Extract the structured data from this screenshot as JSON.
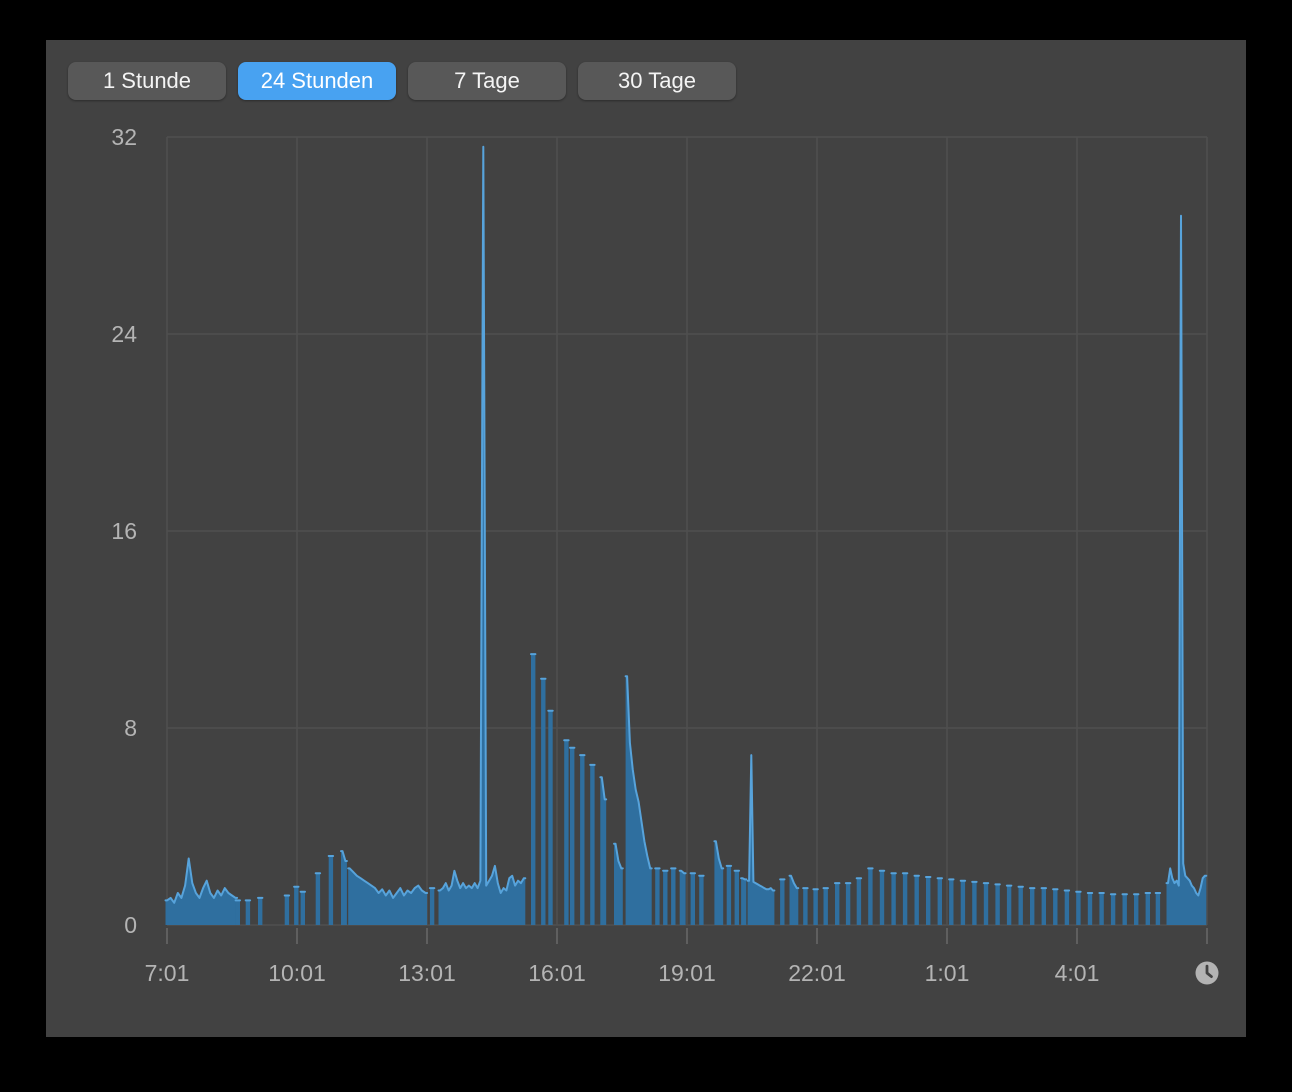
{
  "window": {
    "outer_background": "#000000",
    "panel_background": "#424242"
  },
  "toolbar": {
    "buttons": [
      {
        "label": "1 Stunde",
        "selected": false
      },
      {
        "label": "24 Stunden",
        "selected": true
      },
      {
        "label": "7 Tage",
        "selected": false
      },
      {
        "label": "30 Tage",
        "selected": false
      }
    ],
    "selected_color": "#48a2f1",
    "unselected_color": "#585858"
  },
  "chart_data": {
    "type": "area",
    "title": "",
    "xlabel": "",
    "ylabel": "",
    "ylim": [
      0,
      32
    ],
    "y_ticks": [
      0,
      8,
      16,
      24,
      32
    ],
    "x_ticks": [
      "7:01",
      "10:01",
      "13:01",
      "16:01",
      "19:01",
      "22:01",
      "1:01",
      "4:01"
    ],
    "x_tick_interval_minutes": 180,
    "x_range_minutes": 1440,
    "grid": true,
    "legend": "none",
    "clock_icon_at_axis_end": true,
    "colors": {
      "fill": "#2f6f9f",
      "line": "#57a3db",
      "grid": "#4f4f4f",
      "axis_label": "#b4b4b4",
      "tick": "#5f5f5f",
      "clock": "#b3b3b3"
    },
    "notable_points": [
      {
        "time": "14:18",
        "value": 31.6
      },
      {
        "time": "6:25",
        "value": 28.8
      }
    ],
    "segments": [
      {
        "start_min": 0,
        "step_min": 5,
        "values": [
          1.0,
          1.1,
          0.9,
          1.3,
          1.1,
          1.6,
          2.7,
          1.7,
          1.3,
          1.1,
          1.5,
          1.8,
          1.3,
          1.1,
          1.4,
          1.2,
          1.5,
          1.3,
          1.2,
          1.1
        ]
      },
      {
        "start_min": 98,
        "step_min": 5,
        "values": [
          1.0
        ]
      },
      {
        "start_min": 112,
        "step_min": 5,
        "values": [
          1.0
        ]
      },
      {
        "start_min": 129,
        "step_min": 5,
        "values": [
          1.1
        ]
      },
      {
        "start_min": 166,
        "step_min": 5,
        "values": [
          1.2
        ]
      },
      {
        "start_min": 179,
        "step_min": 5,
        "values": [
          1.55
        ]
      },
      {
        "start_min": 188,
        "step_min": 5,
        "values": [
          1.35
        ]
      },
      {
        "start_min": 209,
        "step_min": 5,
        "values": [
          2.1
        ]
      },
      {
        "start_min": 227,
        "step_min": 5,
        "values": [
          2.8
        ]
      },
      {
        "start_min": 243,
        "step_min": 4,
        "values": [
          3.0,
          2.6
        ]
      },
      {
        "start_min": 253,
        "step_min": 5,
        "values": [
          2.3,
          2.15,
          2.0,
          1.9,
          1.8,
          1.7,
          1.6,
          1.5,
          1.3,
          1.45,
          1.2,
          1.4,
          1.1,
          1.3,
          1.5,
          1.2,
          1.4,
          1.3,
          1.5,
          1.6,
          1.4,
          1.3
        ]
      },
      {
        "start_min": 367,
        "step_min": 5,
        "values": [
          1.5
        ]
      },
      {
        "start_min": 378,
        "step_min": 4,
        "values": [
          1.4,
          1.5,
          1.7,
          1.4,
          1.6,
          2.2,
          1.8,
          1.5,
          1.7,
          1.5,
          1.6,
          1.5,
          1.7,
          1.5,
          1.8,
          31.6,
          1.6,
          1.8,
          2.0,
          2.4,
          1.7,
          1.3,
          1.5,
          1.4,
          1.9,
          2.0,
          1.6,
          1.8,
          1.7,
          1.9
        ]
      },
      {
        "start_min": 507,
        "step_min": 5,
        "values": [
          11.0
        ]
      },
      {
        "start_min": 521,
        "step_min": 5,
        "values": [
          10.0
        ]
      },
      {
        "start_min": 531,
        "step_min": 5,
        "values": [
          8.7
        ]
      },
      {
        "start_min": 553,
        "step_min": 5,
        "values": [
          7.5
        ]
      },
      {
        "start_min": 561,
        "step_min": 5,
        "values": [
          7.2
        ]
      },
      {
        "start_min": 575,
        "step_min": 5,
        "values": [
          6.9
        ]
      },
      {
        "start_min": 589,
        "step_min": 5,
        "values": [
          6.5
        ]
      },
      {
        "start_min": 602,
        "step_min": 4,
        "values": [
          6.0,
          5.1
        ]
      },
      {
        "start_min": 621,
        "step_min": 4,
        "values": [
          3.3,
          2.6,
          2.3
        ]
      },
      {
        "start_min": 637,
        "step_min": 4,
        "values": [
          10.1,
          7.4,
          6.3,
          5.5,
          5.0,
          4.2,
          3.4,
          2.8,
          2.3
        ]
      },
      {
        "start_min": 679,
        "step_min": 5,
        "values": [
          2.3
        ]
      },
      {
        "start_min": 690,
        "step_min": 5,
        "values": [
          2.2
        ]
      },
      {
        "start_min": 701,
        "step_min": 5,
        "values": [
          2.3
        ]
      },
      {
        "start_min": 712,
        "step_min": 4,
        "values": [
          2.2,
          2.1
        ]
      },
      {
        "start_min": 728,
        "step_min": 5,
        "values": [
          2.1
        ]
      },
      {
        "start_min": 740,
        "step_min": 5,
        "values": [
          2.0
        ]
      },
      {
        "start_min": 760,
        "step_min": 4,
        "values": [
          3.4,
          2.7,
          2.3
        ]
      },
      {
        "start_min": 778,
        "step_min": 5,
        "values": [
          2.4
        ]
      },
      {
        "start_min": 789,
        "step_min": 5,
        "values": [
          2.2
        ]
      },
      {
        "start_min": 797,
        "step_min": 3,
        "values": [
          1.9,
          1.85
        ]
      },
      {
        "start_min": 806,
        "step_min": 3,
        "values": [
          1.8,
          6.9,
          1.75,
          1.7,
          1.65,
          1.6,
          1.55,
          1.5,
          1.45,
          1.45,
          1.5,
          1.4
        ]
      },
      {
        "start_min": 852,
        "step_min": 5,
        "values": [
          1.85
        ]
      },
      {
        "start_min": 864,
        "step_min": 4,
        "values": [
          2.0,
          1.7,
          1.5
        ]
      },
      {
        "start_min": 884,
        "step_min": 5,
        "values": [
          1.5
        ]
      },
      {
        "start_min": 898,
        "step_min": 5,
        "values": [
          1.45
        ]
      },
      {
        "start_min": 912,
        "step_min": 5,
        "values": [
          1.5
        ]
      },
      {
        "start_min": 928,
        "step_min": 5,
        "values": [
          1.7
        ]
      },
      {
        "start_min": 943,
        "step_min": 5,
        "values": [
          1.7
        ]
      },
      {
        "start_min": 958,
        "step_min": 5,
        "values": [
          1.9
        ]
      },
      {
        "start_min": 974,
        "step_min": 5,
        "values": [
          2.3
        ]
      },
      {
        "start_min": 990,
        "step_min": 5,
        "values": [
          2.2
        ]
      },
      {
        "start_min": 1006,
        "step_min": 5,
        "values": [
          2.1
        ]
      },
      {
        "start_min": 1022,
        "step_min": 5,
        "values": [
          2.1
        ]
      },
      {
        "start_min": 1038,
        "step_min": 5,
        "values": [
          2.0
        ]
      },
      {
        "start_min": 1054,
        "step_min": 5,
        "values": [
          1.95
        ]
      },
      {
        "start_min": 1070,
        "step_min": 5,
        "values": [
          1.9
        ]
      },
      {
        "start_min": 1086,
        "step_min": 5,
        "values": [
          1.85
        ]
      },
      {
        "start_min": 1102,
        "step_min": 5,
        "values": [
          1.8
        ]
      },
      {
        "start_min": 1118,
        "step_min": 5,
        "values": [
          1.75
        ]
      },
      {
        "start_min": 1134,
        "step_min": 5,
        "values": [
          1.7
        ]
      },
      {
        "start_min": 1150,
        "step_min": 5,
        "values": [
          1.65
        ]
      },
      {
        "start_min": 1166,
        "step_min": 5,
        "values": [
          1.6
        ]
      },
      {
        "start_min": 1182,
        "step_min": 5,
        "values": [
          1.55
        ]
      },
      {
        "start_min": 1198,
        "step_min": 5,
        "values": [
          1.5
        ]
      },
      {
        "start_min": 1214,
        "step_min": 5,
        "values": [
          1.5
        ]
      },
      {
        "start_min": 1230,
        "step_min": 5,
        "values": [
          1.45
        ]
      },
      {
        "start_min": 1246,
        "step_min": 5,
        "values": [
          1.4
        ]
      },
      {
        "start_min": 1262,
        "step_min": 5,
        "values": [
          1.35
        ]
      },
      {
        "start_min": 1278,
        "step_min": 5,
        "values": [
          1.3
        ]
      },
      {
        "start_min": 1294,
        "step_min": 5,
        "values": [
          1.3
        ]
      },
      {
        "start_min": 1310,
        "step_min": 5,
        "values": [
          1.25
        ]
      },
      {
        "start_min": 1326,
        "step_min": 5,
        "values": [
          1.25
        ]
      },
      {
        "start_min": 1342,
        "step_min": 5,
        "values": [
          1.25
        ]
      },
      {
        "start_min": 1358,
        "step_min": 5,
        "values": [
          1.3
        ]
      },
      {
        "start_min": 1372,
        "step_min": 5,
        "values": [
          1.3
        ]
      },
      {
        "start_min": 1386,
        "step_min": 3,
        "values": [
          1.7,
          2.3,
          1.9,
          1.7,
          1.8,
          1.6,
          28.8,
          2.5,
          2.0,
          1.9,
          1.8,
          1.6,
          1.5,
          1.3,
          1.2,
          1.5,
          1.9,
          2.0
        ]
      }
    ]
  }
}
